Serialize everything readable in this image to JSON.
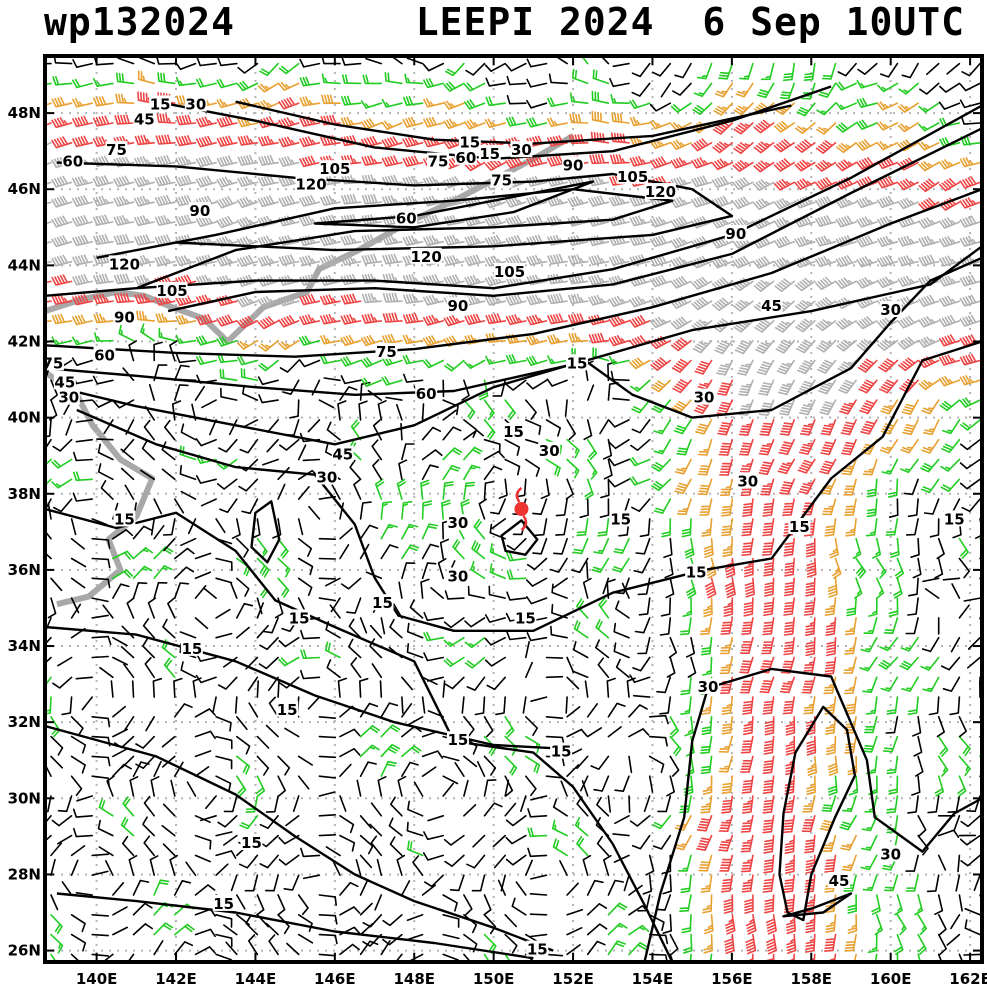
{
  "header": {
    "product": "wp132024",
    "storm": "LEEPI 2024",
    "valid_time": "6 Sep 10UTC"
  },
  "map": {
    "lon_range": [
      138.7,
      162.3
    ],
    "lat_range": [
      25.7,
      49.5
    ],
    "lon_ticks": [
      {
        "value": 140,
        "label": "140E"
      },
      {
        "value": 142,
        "label": "142E"
      },
      {
        "value": 144,
        "label": "144E"
      },
      {
        "value": 146,
        "label": "146E"
      },
      {
        "value": 148,
        "label": "148E"
      },
      {
        "value": 150,
        "label": "150E"
      },
      {
        "value": 152,
        "label": "152E"
      },
      {
        "value": 154,
        "label": "154E"
      },
      {
        "value": 156,
        "label": "156E"
      },
      {
        "value": 158,
        "label": "158E"
      },
      {
        "value": 160,
        "label": "160E"
      },
      {
        "value": 162,
        "label": "162E"
      }
    ],
    "lat_ticks": [
      {
        "value": 26,
        "label": "26N"
      },
      {
        "value": 28,
        "label": "28N"
      },
      {
        "value": 30,
        "label": "30N"
      },
      {
        "value": 32,
        "label": "32N"
      },
      {
        "value": 34,
        "label": "34N"
      },
      {
        "value": 36,
        "label": "36N"
      },
      {
        "value": 38,
        "label": "38N"
      },
      {
        "value": 40,
        "label": "40N"
      },
      {
        "value": 42,
        "label": "42N"
      },
      {
        "value": 44,
        "label": "44N"
      },
      {
        "value": 46,
        "label": "46N"
      },
      {
        "value": 48,
        "label": "48N"
      }
    ],
    "grid": true,
    "storm_center": {
      "lon": 150.7,
      "lat": 37.6
    },
    "colors": {
      "contour": "#000000",
      "grid": "#b4b4b4",
      "coast": "#a8a8a8",
      "barb_light": "#000000",
      "barb_moderate": "#22cc22",
      "barb_strong": "#e8a030",
      "barb_very_strong": "#ee4444",
      "barb_jet": "#b0b0b0",
      "storm": "#ee3333"
    },
    "contour_labels": [
      {
        "text": "15",
        "lon": 141.6,
        "lat": 48.2
      },
      {
        "text": "30",
        "lon": 142.5,
        "lat": 48.2
      },
      {
        "text": "45",
        "lon": 141.2,
        "lat": 47.8
      },
      {
        "text": "60",
        "lon": 139.4,
        "lat": 46.7
      },
      {
        "text": "75",
        "lon": 140.5,
        "lat": 47.0
      },
      {
        "text": "105",
        "lon": 146.0,
        "lat": 46.5
      },
      {
        "text": "120",
        "lon": 145.4,
        "lat": 46.1
      },
      {
        "text": "90",
        "lon": 142.6,
        "lat": 45.4
      },
      {
        "text": "15",
        "lon": 149.4,
        "lat": 47.2
      },
      {
        "text": "30",
        "lon": 150.7,
        "lat": 47.0
      },
      {
        "text": "75",
        "lon": 148.6,
        "lat": 46.7
      },
      {
        "text": "60",
        "lon": 149.3,
        "lat": 46.8
      },
      {
        "text": "15",
        "lon": 149.9,
        "lat": 46.9
      },
      {
        "text": "90",
        "lon": 152.0,
        "lat": 46.6
      },
      {
        "text": "105",
        "lon": 153.5,
        "lat": 46.3
      },
      {
        "text": "120",
        "lon": 154.2,
        "lat": 45.9
      },
      {
        "text": "75",
        "lon": 150.2,
        "lat": 46.2
      },
      {
        "text": "60",
        "lon": 147.8,
        "lat": 45.2
      },
      {
        "text": "120",
        "lon": 140.7,
        "lat": 44.0
      },
      {
        "text": "105",
        "lon": 141.9,
        "lat": 43.3
      },
      {
        "text": "90",
        "lon": 140.7,
        "lat": 42.6
      },
      {
        "text": "120",
        "lon": 148.3,
        "lat": 44.2
      },
      {
        "text": "105",
        "lon": 150.4,
        "lat": 43.8
      },
      {
        "text": "90",
        "lon": 149.1,
        "lat": 42.9
      },
      {
        "text": "90",
        "lon": 156.1,
        "lat": 44.8
      },
      {
        "text": "75",
        "lon": 147.3,
        "lat": 41.7
      },
      {
        "text": "60",
        "lon": 140.2,
        "lat": 41.6
      },
      {
        "text": "75",
        "lon": 138.9,
        "lat": 41.4
      },
      {
        "text": "45",
        "lon": 139.2,
        "lat": 40.9
      },
      {
        "text": "30",
        "lon": 139.3,
        "lat": 40.5
      },
      {
        "text": "60",
        "lon": 148.3,
        "lat": 40.6
      },
      {
        "text": "45",
        "lon": 157.0,
        "lat": 42.9
      },
      {
        "text": "30",
        "lon": 160.0,
        "lat": 42.8
      },
      {
        "text": "15",
        "lon": 152.1,
        "lat": 41.4
      },
      {
        "text": "15",
        "lon": 150.5,
        "lat": 39.6
      },
      {
        "text": "30",
        "lon": 151.4,
        "lat": 39.1
      },
      {
        "text": "30",
        "lon": 155.3,
        "lat": 40.5
      },
      {
        "text": "45",
        "lon": 146.2,
        "lat": 39.0
      },
      {
        "text": "30",
        "lon": 145.8,
        "lat": 38.4
      },
      {
        "text": "30",
        "lon": 156.4,
        "lat": 38.3
      },
      {
        "text": "15",
        "lon": 140.7,
        "lat": 37.3
      },
      {
        "text": "30",
        "lon": 149.1,
        "lat": 37.2
      },
      {
        "text": "15",
        "lon": 153.2,
        "lat": 37.3
      },
      {
        "text": "15",
        "lon": 157.7,
        "lat": 37.1
      },
      {
        "text": "15",
        "lon": 161.6,
        "lat": 37.3
      },
      {
        "text": "15",
        "lon": 155.1,
        "lat": 35.9
      },
      {
        "text": "30",
        "lon": 149.1,
        "lat": 35.8
      },
      {
        "text": "15",
        "lon": 147.2,
        "lat": 35.1
      },
      {
        "text": "15",
        "lon": 145.1,
        "lat": 34.7
      },
      {
        "text": "15",
        "lon": 150.8,
        "lat": 34.7
      },
      {
        "text": "15",
        "lon": 142.4,
        "lat": 33.9
      },
      {
        "text": "30",
        "lon": 155.4,
        "lat": 32.9
      },
      {
        "text": "15",
        "lon": 144.8,
        "lat": 32.3
      },
      {
        "text": "15",
        "lon": 149.1,
        "lat": 31.5
      },
      {
        "text": "15",
        "lon": 151.7,
        "lat": 31.2
      },
      {
        "text": "15",
        "lon": 143.9,
        "lat": 28.8
      },
      {
        "text": "30",
        "lon": 160.0,
        "lat": 28.5
      },
      {
        "text": "45",
        "lon": 158.7,
        "lat": 27.8
      },
      {
        "text": "15",
        "lon": 143.2,
        "lat": 27.2
      },
      {
        "text": "15",
        "lon": 151.1,
        "lat": 26.0
      }
    ]
  }
}
